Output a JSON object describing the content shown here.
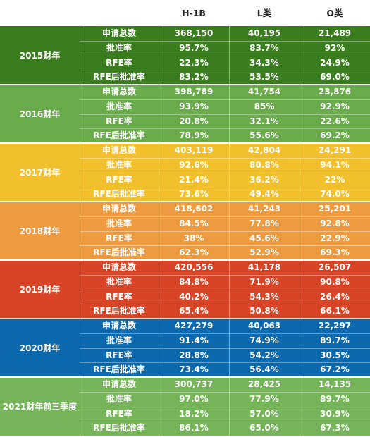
{
  "header": {
    "col1": "",
    "col2": "",
    "col3": "H-1B",
    "col4": "L类",
    "col5": "O类"
  },
  "metric_labels": [
    "申请总数",
    "批准率",
    "RFE率",
    "RFE后批准率"
  ],
  "groups": [
    {
      "year": "2015财年",
      "color": "#3a7d1f",
      "rows": [
        [
          "368,150",
          "40,195",
          "21,489"
        ],
        [
          "95.7%",
          "83.7%",
          "92%"
        ],
        [
          "22.3%",
          "34.3%",
          "24.9%"
        ],
        [
          "83.2%",
          "53.5%",
          "69.0%"
        ]
      ]
    },
    {
      "year": "2016财年",
      "color": "#6aab4c",
      "rows": [
        [
          "398,789",
          "41,754",
          "23,876"
        ],
        [
          "93.9%",
          "85%",
          "92.9%"
        ],
        [
          "20.8%",
          "32.1%",
          "22.6%"
        ],
        [
          "78.9%",
          "55.6%",
          "69.2%"
        ]
      ]
    },
    {
      "year": "2017财年",
      "color": "#f2c02c",
      "rows": [
        [
          "403,119",
          "42,804",
          "24,291"
        ],
        [
          "92.6%",
          "80.8%",
          "94.1%"
        ],
        [
          "21.4%",
          "36.2%",
          "22%"
        ],
        [
          "73.6%",
          "49.4%",
          "74.0%"
        ]
      ]
    },
    {
      "year": "2018财年",
      "color": "#ee9a3e",
      "rows": [
        [
          "418,602",
          "41,243",
          "25,201"
        ],
        [
          "84.5%",
          "77.8%",
          "92.8%"
        ],
        [
          "38%",
          "45.6%",
          "22.9%"
        ],
        [
          "62.3%",
          "52.9%",
          "69.3%"
        ]
      ]
    },
    {
      "year": "2019财年",
      "color": "#d84426",
      "rows": [
        [
          "420,556",
          "41,178",
          "26,507"
        ],
        [
          "84.8%",
          "71.9%",
          "90.8%"
        ],
        [
          "40.2%",
          "54.3%",
          "26.4%"
        ],
        [
          "65.4%",
          "50.8%",
          "66.1%"
        ]
      ]
    },
    {
      "year": "2020财年",
      "color": "#0c69ad",
      "rows": [
        [
          "427,279",
          "40,063",
          "22,297"
        ],
        [
          "91.4%",
          "74.9%",
          "89.7%"
        ],
        [
          "28.8%",
          "54.2%",
          "30.5%"
        ],
        [
          "73.4%",
          "56.4%",
          "67.2%"
        ]
      ]
    },
    {
      "year": "2021财年前三季度",
      "color": "#76b45a",
      "rows": [
        [
          "300,737",
          "28,425",
          "14,135"
        ],
        [
          "97.0%",
          "77.9%",
          "89.7%"
        ],
        [
          "18.2%",
          "57.0%",
          "30.9%"
        ],
        [
          "86.1%",
          "65.0%",
          "67.3%"
        ]
      ]
    }
  ]
}
